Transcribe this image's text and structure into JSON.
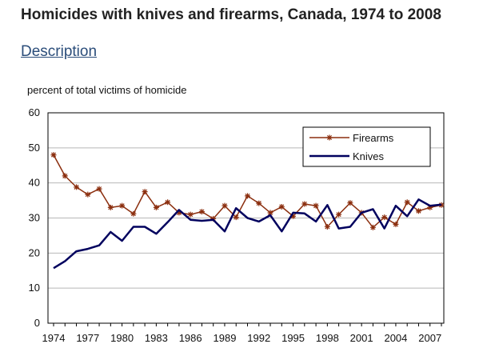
{
  "page": {
    "title": "Homicides with knives and firearms, Canada, 1974 to 2008",
    "description_link": "Description"
  },
  "chart_data": {
    "type": "line",
    "ylabel": "percent of total victims of homicide",
    "xlabel": "",
    "ylim": [
      0,
      60
    ],
    "yticks": [
      0,
      10,
      20,
      30,
      40,
      50,
      60
    ],
    "xlim": [
      1974,
      2008
    ],
    "xticks": [
      1974,
      1977,
      1980,
      1983,
      1986,
      1989,
      1992,
      1995,
      1998,
      2001,
      2004,
      2007
    ],
    "grid": "horizontal",
    "legend_position": "top-right",
    "x": [
      1974,
      1975,
      1976,
      1977,
      1978,
      1979,
      1980,
      1981,
      1982,
      1983,
      1984,
      1985,
      1986,
      1987,
      1988,
      1989,
      1990,
      1991,
      1992,
      1993,
      1994,
      1995,
      1996,
      1997,
      1998,
      1999,
      2000,
      2001,
      2002,
      2003,
      2004,
      2005,
      2006,
      2007,
      2008
    ],
    "series": [
      {
        "name": "Firearms",
        "color": "#8b2e0e",
        "marker": "star",
        "values": [
          48,
          42,
          38.8,
          36.7,
          38.3,
          33,
          33.5,
          31.2,
          37.5,
          33,
          34.5,
          31.5,
          31,
          31.8,
          29.8,
          33.5,
          30.2,
          36.3,
          34.2,
          31.5,
          33.2,
          30.5,
          34,
          33.5,
          27.5,
          31,
          34.3,
          31.5,
          27.3,
          30.2,
          28.2,
          34.5,
          32,
          33,
          33.7
        ]
      },
      {
        "name": "Knives",
        "color": "#00005e",
        "marker": "none",
        "values": [
          15.7,
          17.7,
          20.5,
          21.2,
          22.2,
          26,
          23.5,
          27.5,
          27.5,
          25.5,
          28.8,
          32.3,
          29.5,
          29.2,
          29.5,
          26.2,
          32.8,
          30,
          29,
          30.8,
          26.2,
          31.5,
          31.3,
          29,
          33.7,
          27,
          27.5,
          31.5,
          32.5,
          27,
          33.5,
          30.5,
          35.3,
          33.5,
          33.8
        ]
      }
    ]
  }
}
